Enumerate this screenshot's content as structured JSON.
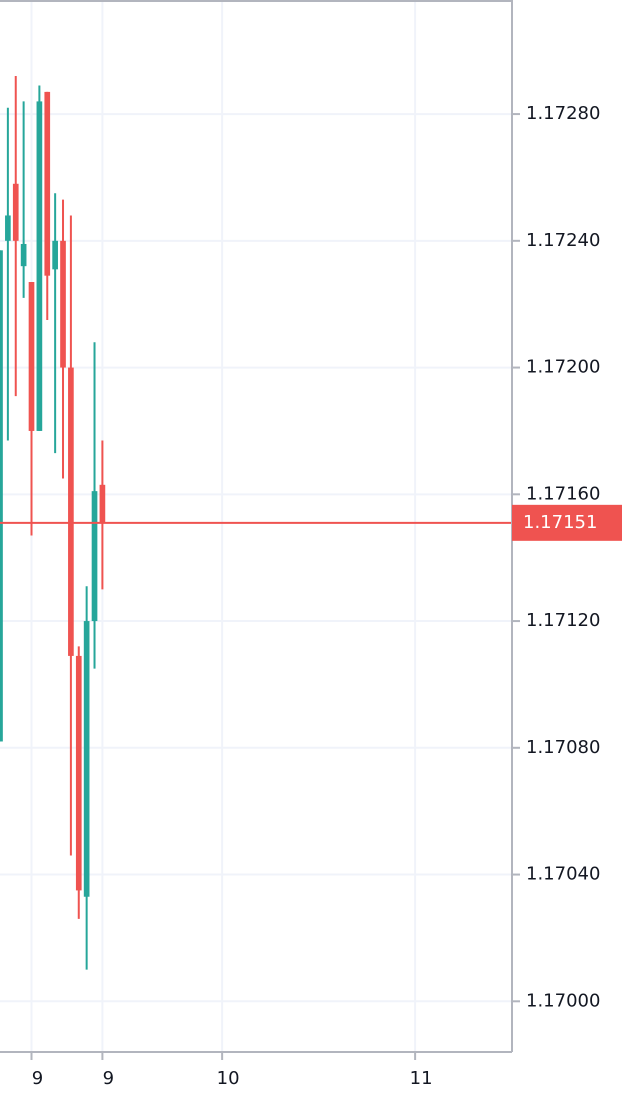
{
  "chart_data": {
    "type": "candlestick",
    "x": [
      0,
      1,
      2,
      3,
      4,
      5,
      6,
      7,
      8,
      9,
      10,
      11,
      12,
      13
    ],
    "open": [
      1.17082,
      1.1724,
      1.17258,
      1.17232,
      1.17227,
      1.1718,
      1.17287,
      1.17231,
      1.1724,
      1.172,
      1.17109,
      1.17033,
      1.1712,
      1.17163
    ],
    "high": [
      1.17237,
      1.17282,
      1.17292,
      1.17284,
      1.17227,
      1.17289,
      1.17287,
      1.17255,
      1.17253,
      1.17248,
      1.17112,
      1.17131,
      1.17208,
      1.17177
    ],
    "low": [
      1.17082,
      1.17177,
      1.17191,
      1.17222,
      1.17147,
      1.1718,
      1.17215,
      1.17173,
      1.17165,
      1.17046,
      1.17026,
      1.1701,
      1.17105,
      1.1713
    ],
    "close": [
      1.17237,
      1.17248,
      1.1724,
      1.17239,
      1.1718,
      1.17284,
      1.17229,
      1.1724,
      1.172,
      1.17109,
      1.17035,
      1.1712,
      1.17161,
      1.17151
    ],
    "up_color": "#26a69a",
    "down_color": "#ef5350",
    "xlim": [
      0,
      65
    ],
    "xticks": [
      {
        "value": 4,
        "label": "9"
      },
      {
        "value": 13,
        "label": "9"
      },
      {
        "value": 28.2,
        "label": "10"
      },
      {
        "value": 52.7,
        "label": "11"
      }
    ],
    "ylim": [
      1.16984,
      1.17316
    ],
    "yticks": [
      {
        "value": 1.17,
        "label": "1.17000"
      },
      {
        "value": 1.1704,
        "label": "1.17040"
      },
      {
        "value": 1.1708,
        "label": "1.17080"
      },
      {
        "value": 1.1712,
        "label": "1.17120"
      },
      {
        "value": 1.1716,
        "label": "1.17160"
      },
      {
        "value": 1.172,
        "label": "1.17200"
      },
      {
        "value": 1.1724,
        "label": "1.17240"
      },
      {
        "value": 1.1728,
        "label": "1.17280"
      }
    ],
    "grid": true,
    "last_price": {
      "value": 1.17151,
      "label": "1.17151"
    }
  }
}
